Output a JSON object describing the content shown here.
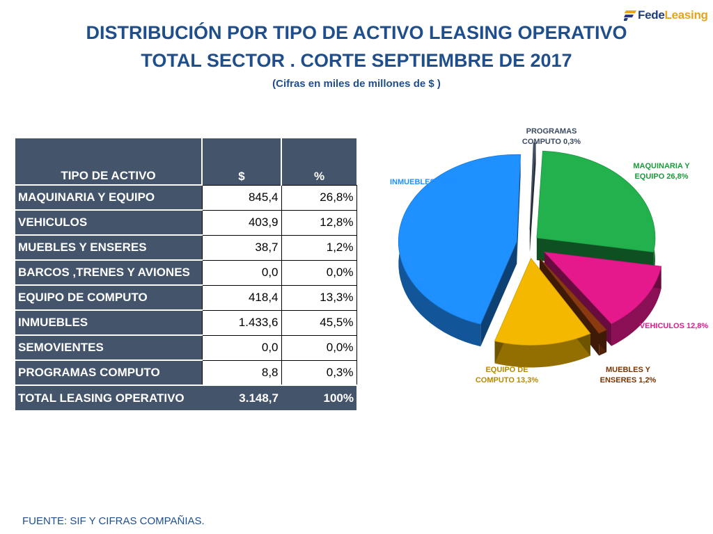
{
  "logo": {
    "part1": "Fede",
    "part2": "Leasing"
  },
  "title_line1": "DISTRIBUCIÓN POR TIPO DE ACTIVO LEASING OPERATIVO",
  "title_line2": "TOTAL SECTOR . CORTE  SEPTIEMBRE DE 2017",
  "subtitle": "(Cifras en miles de millones de $ )",
  "table": {
    "headers": [
      "TIPO DE ACTIVO",
      "$",
      "%"
    ],
    "rows": [
      {
        "name": "MAQUINARIA Y EQUIPO",
        "value": "845,4",
        "pct": "26,8%"
      },
      {
        "name": "VEHICULOS",
        "value": "403,9",
        "pct": "12,8%"
      },
      {
        "name": "MUEBLES Y ENSERES",
        "value": "38,7",
        "pct": "1,2%"
      },
      {
        "name": "BARCOS ,TRENES Y AVIONES",
        "value": "0,0",
        "pct": "0,0%"
      },
      {
        "name": "EQUIPO DE COMPUTO",
        "value": "418,4",
        "pct": "13,3%"
      },
      {
        "name": "INMUEBLES",
        "value": "1.433,6",
        "pct": "45,5%"
      },
      {
        "name": "SEMOVIENTES",
        "value": "0,0",
        "pct": "0,0%"
      },
      {
        "name": "PROGRAMAS COMPUTO",
        "value": "8,8",
        "pct": "0,3%"
      }
    ],
    "total": {
      "name": "TOTAL LEASING OPERATIVO",
      "value": "3.148,7",
      "pct": "100%"
    }
  },
  "chart_data": {
    "type": "pie",
    "slices": [
      {
        "label_lines": [
          "MAQUINARIA Y",
          "EQUIPO 26,8%"
        ],
        "value": 26.8,
        "color": "#22b14c"
      },
      {
        "label_lines": [
          "VEHICULOS 12,8%"
        ],
        "value": 12.8,
        "color": "#e6198c"
      },
      {
        "label_lines": [
          "MUEBLES Y",
          "ENSERES 1,2%"
        ],
        "value": 1.2,
        "color": "#8b3a0f"
      },
      {
        "label_lines": [
          "EQUIPO DE",
          "COMPUTO 13,3%"
        ],
        "value": 13.3,
        "color": "#f5b800"
      },
      {
        "label_lines": [
          "INMUEBLES 45,5%"
        ],
        "value": 45.5,
        "color": "#1e90ff"
      },
      {
        "label_lines": [
          "PROGRAMAS",
          "COMPUTO 0,3%"
        ],
        "value": 0.3,
        "color": "#44546a"
      }
    ],
    "label_colors": [
      "#1a9a3a",
      "#e6198c",
      "#7a3300",
      "#b88a00",
      "#1e90ff",
      "#3a4a60"
    ]
  },
  "source": "FUENTE: SIF Y CIFRAS COMPAÑIAS."
}
